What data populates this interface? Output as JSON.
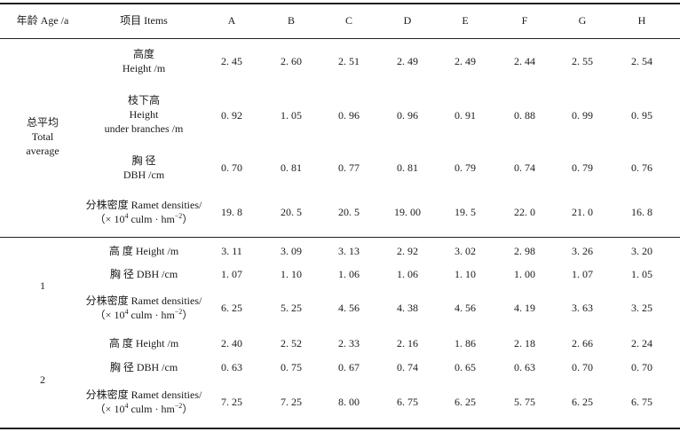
{
  "header": {
    "age": "年龄 Age /a",
    "items": "项目 Items",
    "cols": [
      "A",
      "B",
      "C",
      "D",
      "E",
      "F",
      "G",
      "H"
    ]
  },
  "total": {
    "label_cn": "总平均",
    "label_en1": "Total",
    "label_en2": "average",
    "rows": [
      {
        "name": "height",
        "lines": [
          "高度",
          "Height /m"
        ],
        "values": [
          "2. 45",
          "2. 60",
          "2. 51",
          "2. 49",
          "2. 49",
          "2. 44",
          "2. 55",
          "2. 54"
        ]
      },
      {
        "name": "under-branch-height",
        "lines": [
          "枝下高",
          "Height",
          "under branches /m"
        ],
        "values": [
          "0. 92",
          "1. 05",
          "0. 96",
          "0. 96",
          "0. 91",
          "0. 88",
          "0. 99",
          "0. 95"
        ]
      },
      {
        "name": "dbh",
        "lines": [
          "胸    径",
          "DBH /cm"
        ],
        "values": [
          "0. 70",
          "0. 81",
          "0. 77",
          "0. 81",
          "0. 79",
          "0. 74",
          "0. 79",
          "0. 76"
        ]
      },
      {
        "name": "ramet-density",
        "line1": "分株密度 Ramet densities/",
        "line2_pre": "（× 10",
        "line2_sup": "4",
        "line2_mid": " culm · hm",
        "line2_sup2": "−2",
        "line2_post": "）",
        "values": [
          "19. 8",
          "20. 5",
          "20. 5",
          "19. 00",
          "19. 5",
          "22. 0",
          "21. 0",
          "16. 8"
        ]
      }
    ]
  },
  "age1": {
    "label": "1",
    "rows": [
      {
        "name": "height",
        "label": "高    度 Height /m",
        "values": [
          "3. 11",
          "3. 09",
          "3. 13",
          "2. 92",
          "3. 02",
          "2. 98",
          "3. 26",
          "3. 20"
        ]
      },
      {
        "name": "dbh",
        "label": "胸    径 DBH /cm",
        "values": [
          "1. 07",
          "1. 10",
          "1. 06",
          "1. 06",
          "1. 10",
          "1. 00",
          "1. 07",
          "1. 05"
        ]
      },
      {
        "name": "ramet-density",
        "line1": "分株密度 Ramet densities/",
        "line2_pre": "（× 10",
        "line2_sup": "4",
        "line2_mid": " culm · hm",
        "line2_sup2": "−2",
        "line2_post": "）",
        "values": [
          "6. 25",
          "5. 25",
          "4. 56",
          "4. 38",
          "4. 56",
          "4. 19",
          "3. 63",
          "3. 25"
        ]
      }
    ]
  },
  "age2": {
    "label": "2",
    "rows": [
      {
        "name": "height",
        "label": "高    度 Height /m",
        "values": [
          "2. 40",
          "2. 52",
          "2. 33",
          "2. 16",
          "1. 86",
          "2. 18",
          "2. 66",
          "2. 24"
        ]
      },
      {
        "name": "dbh",
        "label": "胸    径 DBH /cm",
        "values": [
          "0. 63",
          "0. 75",
          "0. 67",
          "0. 74",
          "0. 65",
          "0. 63",
          "0. 70",
          "0. 70"
        ]
      },
      {
        "name": "ramet-density",
        "line1": "分株密度 Ramet densities/",
        "line2_pre": "（× 10",
        "line2_sup": "4",
        "line2_mid": " culm · hm",
        "line2_sup2": "−2",
        "line2_post": "）",
        "values": [
          "7. 25",
          "7. 25",
          "8. 00",
          "6. 75",
          "6. 25",
          "5. 75",
          "6. 25",
          "6. 75"
        ]
      }
    ]
  }
}
